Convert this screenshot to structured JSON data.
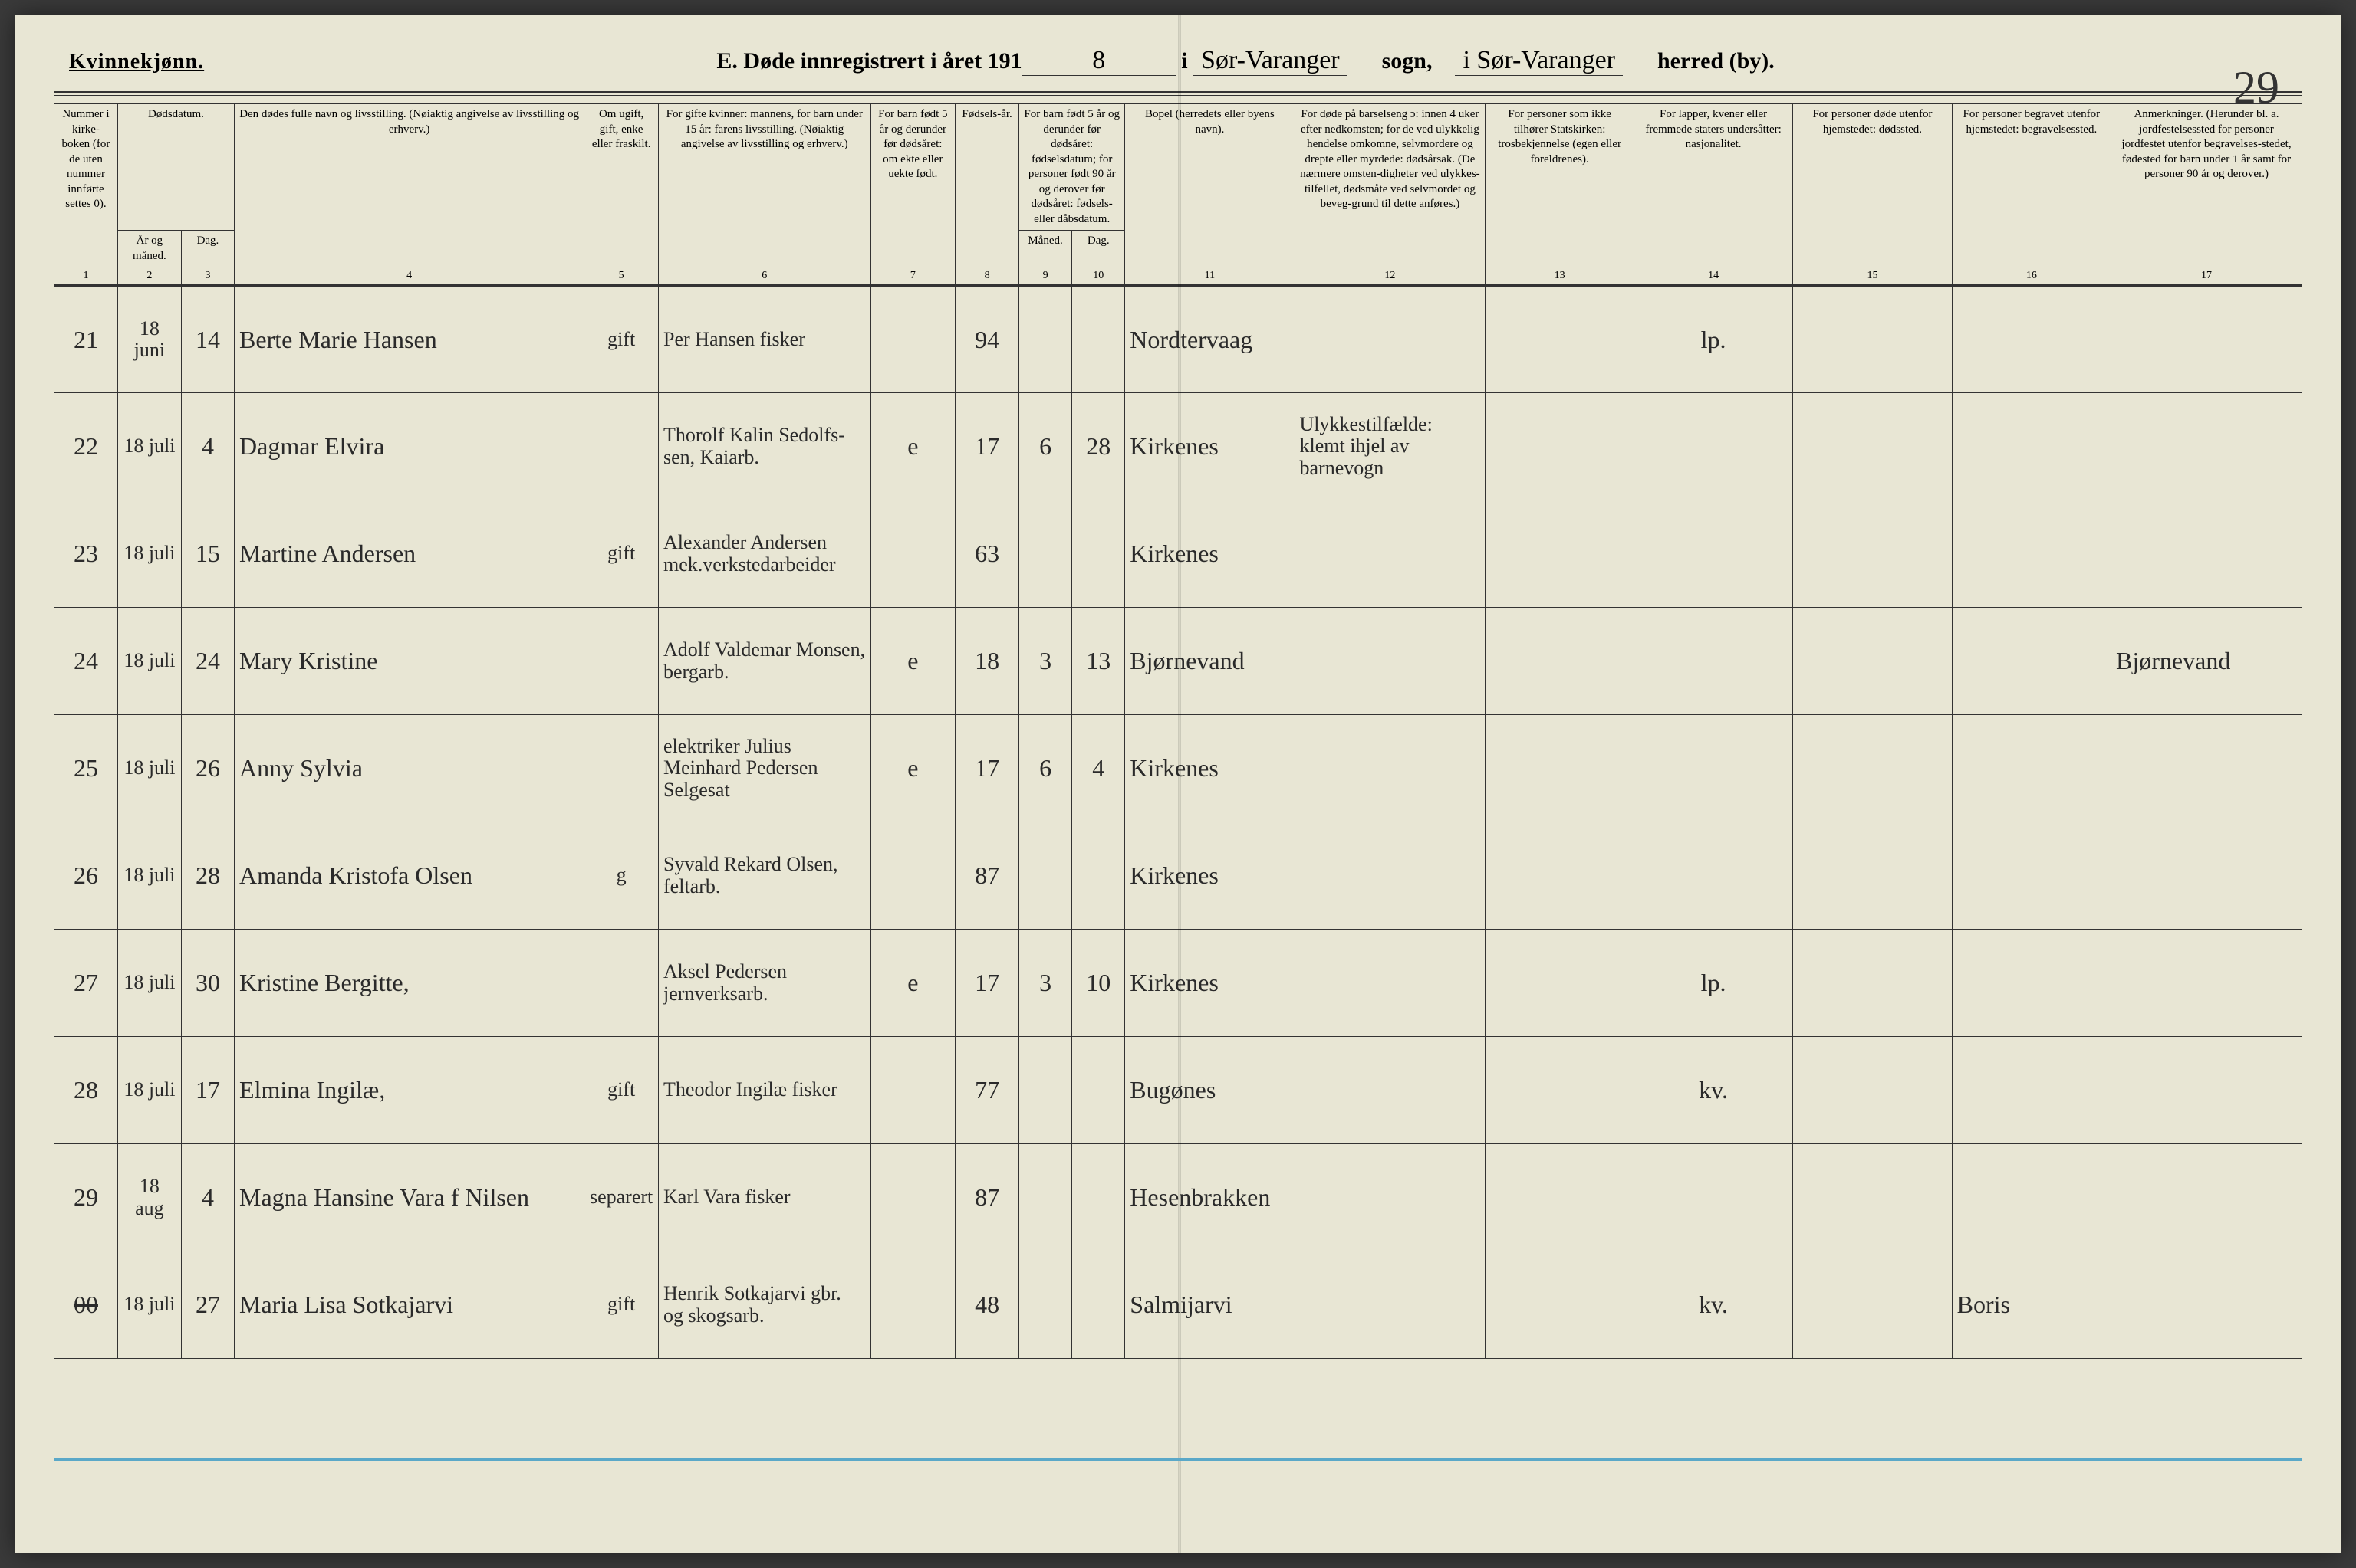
{
  "header": {
    "gender": "Kvinnekjønn.",
    "title_prefix": "E. Døde innregistrert i året 191",
    "year_suffix": "8",
    "title_mid1": " i ",
    "sogn": "Sør-Varanger",
    "label_sogn": "sogn,",
    "herred": "i Sør-Varanger",
    "label_herred": "herred (by).",
    "page_number": "29"
  },
  "columns": {
    "c1": "Nummer i kirke-boken (for de uten nummer innførte settes 0).",
    "c2a": "Dødsdatum.",
    "c2b_yr": "År og måned.",
    "c2b_day": "Dag.",
    "c4": "Den dødes fulle navn og livsstilling. (Nøiaktig angivelse av livsstilling og erhverv.)",
    "c5": "Om ugift, gift, enke eller fraskilt.",
    "c6": "For gifte kvinner: mannens, for barn under 15 år: farens livsstilling. (Nøiaktig angivelse av livsstilling og erhverv.)",
    "c7": "For barn født 5 år og derunder før dødsåret: om ekte eller uekte født.",
    "c8": "Fødsels-år.",
    "c9_10": "For barn født 5 år og derunder før dødsåret: fødselsdatum; for personer født 90 år og derover før dødsåret: fødsels- eller dåbsdatum.",
    "c9": "Måned.",
    "c10": "Dag.",
    "c11": "Bopel (herredets eller byens navn).",
    "c12": "For døde på barselseng ɔ: innen 4 uker efter nedkomsten; for de ved ulykkelig hendelse omkomne, selvmordere og drepte eller myrdede: dødsårsak. (De nærmere omsten-digheter ved ulykkes-tilfellet, dødsmåte ved selvmordet og beveg-grund til dette anføres.)",
    "c13": "For personer som ikke tilhører Statskirken: trosbekjennelse (egen eller foreldrenes).",
    "c14": "For lapper, kvener eller fremmede staters undersåtter: nasjonalitet.",
    "c15": "For personer døde utenfor hjemstedet: dødssted.",
    "c16": "For personer begravet utenfor hjemstedet: begravelsessted.",
    "c17": "Anmerkninger. (Herunder bl. a. jordfestelsessted for personer jordfestet utenfor begravelses-stedet, fødested for barn under 1 år samt for personer 90 år og derover.)"
  },
  "colnums": [
    "1",
    "2",
    "3",
    "4",
    "5",
    "6",
    "7",
    "8",
    "9",
    "10",
    "11",
    "12",
    "13",
    "14",
    "15",
    "16",
    "17"
  ],
  "rows": [
    {
      "num": "21",
      "yr": "18 juni",
      "day": "14",
      "name": "Berte Marie Hansen",
      "stat": "gift",
      "spouse": "Per Hansen fisker",
      "born": "",
      "byear": "94",
      "bm": "",
      "bd": "",
      "res": "Nordtervaag",
      "cause": "",
      "rel": "",
      "nat": "lp.",
      "dplace": "",
      "bur": "",
      "notes": ""
    },
    {
      "num": "22",
      "yr": "18 juli",
      "day": "4",
      "name": "Dagmar Elvira",
      "stat": "",
      "spouse": "Thorolf Kalin Sedolfs-sen, Kaiarb.",
      "born": "e",
      "byear": "17",
      "bm": "6",
      "bd": "28",
      "res": "Kirkenes",
      "cause": "Ulykkestilfælde: klemt ihjel av barnevogn",
      "rel": "",
      "nat": "",
      "dplace": "",
      "bur": "",
      "notes": ""
    },
    {
      "num": "23",
      "yr": "18 juli",
      "day": "15",
      "name": "Martine Andersen",
      "stat": "gift",
      "spouse": "Alexander Andersen mek.verkstedarbeider",
      "born": "",
      "byear": "63",
      "bm": "",
      "bd": "",
      "res": "Kirkenes",
      "cause": "",
      "rel": "",
      "nat": "",
      "dplace": "",
      "bur": "",
      "notes": ""
    },
    {
      "num": "24",
      "yr": "18 juli",
      "day": "24",
      "name": "Mary Kristine",
      "stat": "",
      "spouse": "Adolf Valdemar Monsen, bergarb.",
      "born": "e",
      "byear": "18",
      "bm": "3",
      "bd": "13",
      "res": "Bjørnevand",
      "cause": "",
      "rel": "",
      "nat": "",
      "dplace": "",
      "bur": "",
      "notes": "Bjørnevand"
    },
    {
      "num": "25",
      "yr": "18 juli",
      "day": "26",
      "name": "Anny Sylvia",
      "stat": "",
      "spouse": "elektriker Julius Meinhard Pedersen Selgesat",
      "born": "e",
      "byear": "17",
      "bm": "6",
      "bd": "4",
      "res": "Kirkenes",
      "cause": "",
      "rel": "",
      "nat": "",
      "dplace": "",
      "bur": "",
      "notes": ""
    },
    {
      "num": "26",
      "yr": "18 juli",
      "day": "28",
      "name": "Amanda Kristofa Olsen",
      "stat": "g",
      "spouse": "Syvald Rekard Olsen, feltarb.",
      "born": "",
      "byear": "87",
      "bm": "",
      "bd": "",
      "res": "Kirkenes",
      "cause": "",
      "rel": "",
      "nat": "",
      "dplace": "",
      "bur": "",
      "notes": ""
    },
    {
      "num": "27",
      "yr": "18 juli",
      "day": "30",
      "name": "Kristine Bergitte,",
      "stat": "",
      "spouse": "Aksel Pedersen jernverksarb.",
      "born": "e",
      "byear": "17",
      "bm": "3",
      "bd": "10",
      "res": "Kirkenes",
      "cause": "",
      "rel": "",
      "nat": "lp.",
      "dplace": "",
      "bur": "",
      "notes": ""
    },
    {
      "num": "28",
      "yr": "18 juli",
      "day": "17",
      "name": "Elmina Ingilæ,",
      "stat": "gift",
      "spouse": "Theodor Ingilæ fisker",
      "born": "",
      "byear": "77",
      "bm": "",
      "bd": "",
      "res": "Bugønes",
      "cause": "",
      "rel": "",
      "nat": "kv.",
      "dplace": "",
      "bur": "",
      "notes": ""
    },
    {
      "num": "29",
      "yr": "18 aug",
      "day": "4",
      "name": "Magna Hansine Vara f Nilsen",
      "stat": "separert",
      "spouse": "Karl Vara fisker",
      "born": "",
      "byear": "87",
      "bm": "",
      "bd": "",
      "res": "Hesenbrakken",
      "cause": "",
      "rel": "",
      "nat": "",
      "dplace": "",
      "bur": "",
      "notes": ""
    },
    {
      "num": "00",
      "yr": "18 juli",
      "day": "27",
      "name": "Maria Lisa Sotkajarvi",
      "stat": "gift",
      "spouse": "Henrik Sotkajarvi gbr. og skogsarb.",
      "born": "",
      "byear": "48",
      "bm": "",
      "bd": "",
      "res": "Salmijarvi",
      "cause": "",
      "rel": "",
      "nat": "kv.",
      "dplace": "",
      "bur": "Boris",
      "notes": ""
    }
  ]
}
